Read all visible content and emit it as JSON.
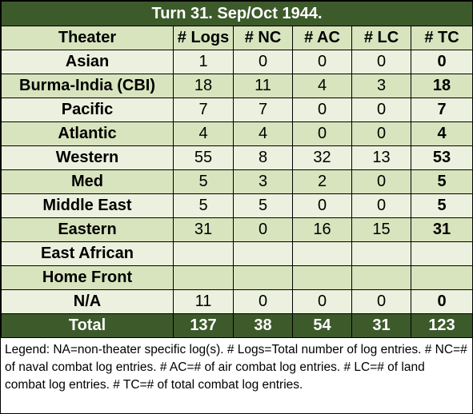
{
  "title": "Turn 31.  Sep/Oct 1944.",
  "headers": [
    "Theater",
    "# Logs",
    "# NC",
    "# AC",
    "# LC",
    "# TC"
  ],
  "rows": [
    {
      "theater": "Asian",
      "logs": "1",
      "nc": "0",
      "ac": "0",
      "lc": "0",
      "tc": "0"
    },
    {
      "theater": "Burma-India (CBI)",
      "logs": "18",
      "nc": "11",
      "ac": "4",
      "lc": "3",
      "tc": "18"
    },
    {
      "theater": "Pacific",
      "logs": "7",
      "nc": "7",
      "ac": "0",
      "lc": "0",
      "tc": "7"
    },
    {
      "theater": "Atlantic",
      "logs": "4",
      "nc": "4",
      "ac": "0",
      "lc": "0",
      "tc": "4"
    },
    {
      "theater": "Western",
      "logs": "55",
      "nc": "8",
      "ac": "32",
      "lc": "13",
      "tc": "53"
    },
    {
      "theater": "Med",
      "logs": "5",
      "nc": "3",
      "ac": "2",
      "lc": "0",
      "tc": "5"
    },
    {
      "theater": "Middle East",
      "logs": "5",
      "nc": "5",
      "ac": "0",
      "lc": "0",
      "tc": "5"
    },
    {
      "theater": "Eastern",
      "logs": "31",
      "nc": "0",
      "ac": "16",
      "lc": "15",
      "tc": "31"
    },
    {
      "theater": "East African",
      "logs": "",
      "nc": "",
      "ac": "",
      "lc": "",
      "tc": ""
    },
    {
      "theater": "Home Front",
      "logs": "",
      "nc": "",
      "ac": "",
      "lc": "",
      "tc": ""
    },
    {
      "theater": "N/A",
      "logs": "11",
      "nc": "0",
      "ac": "0",
      "lc": "0",
      "tc": "0"
    }
  ],
  "total": {
    "label": "Total",
    "logs": "137",
    "nc": "38",
    "ac": "54",
    "lc": "31",
    "tc": "123"
  },
  "legend": "Legend:  NA=non-theater specific log(s).  # Logs=Total number of log entries.  # NC=# of naval combat log entries.  # AC=# of air combat log entries.  # LC=# of land combat log entries.  # TC=# of total combat log entries.",
  "colors": {
    "dark_green": "#3d5a2b",
    "light_green_a": "#ebf1de",
    "light_green_b": "#d8e4bd"
  }
}
